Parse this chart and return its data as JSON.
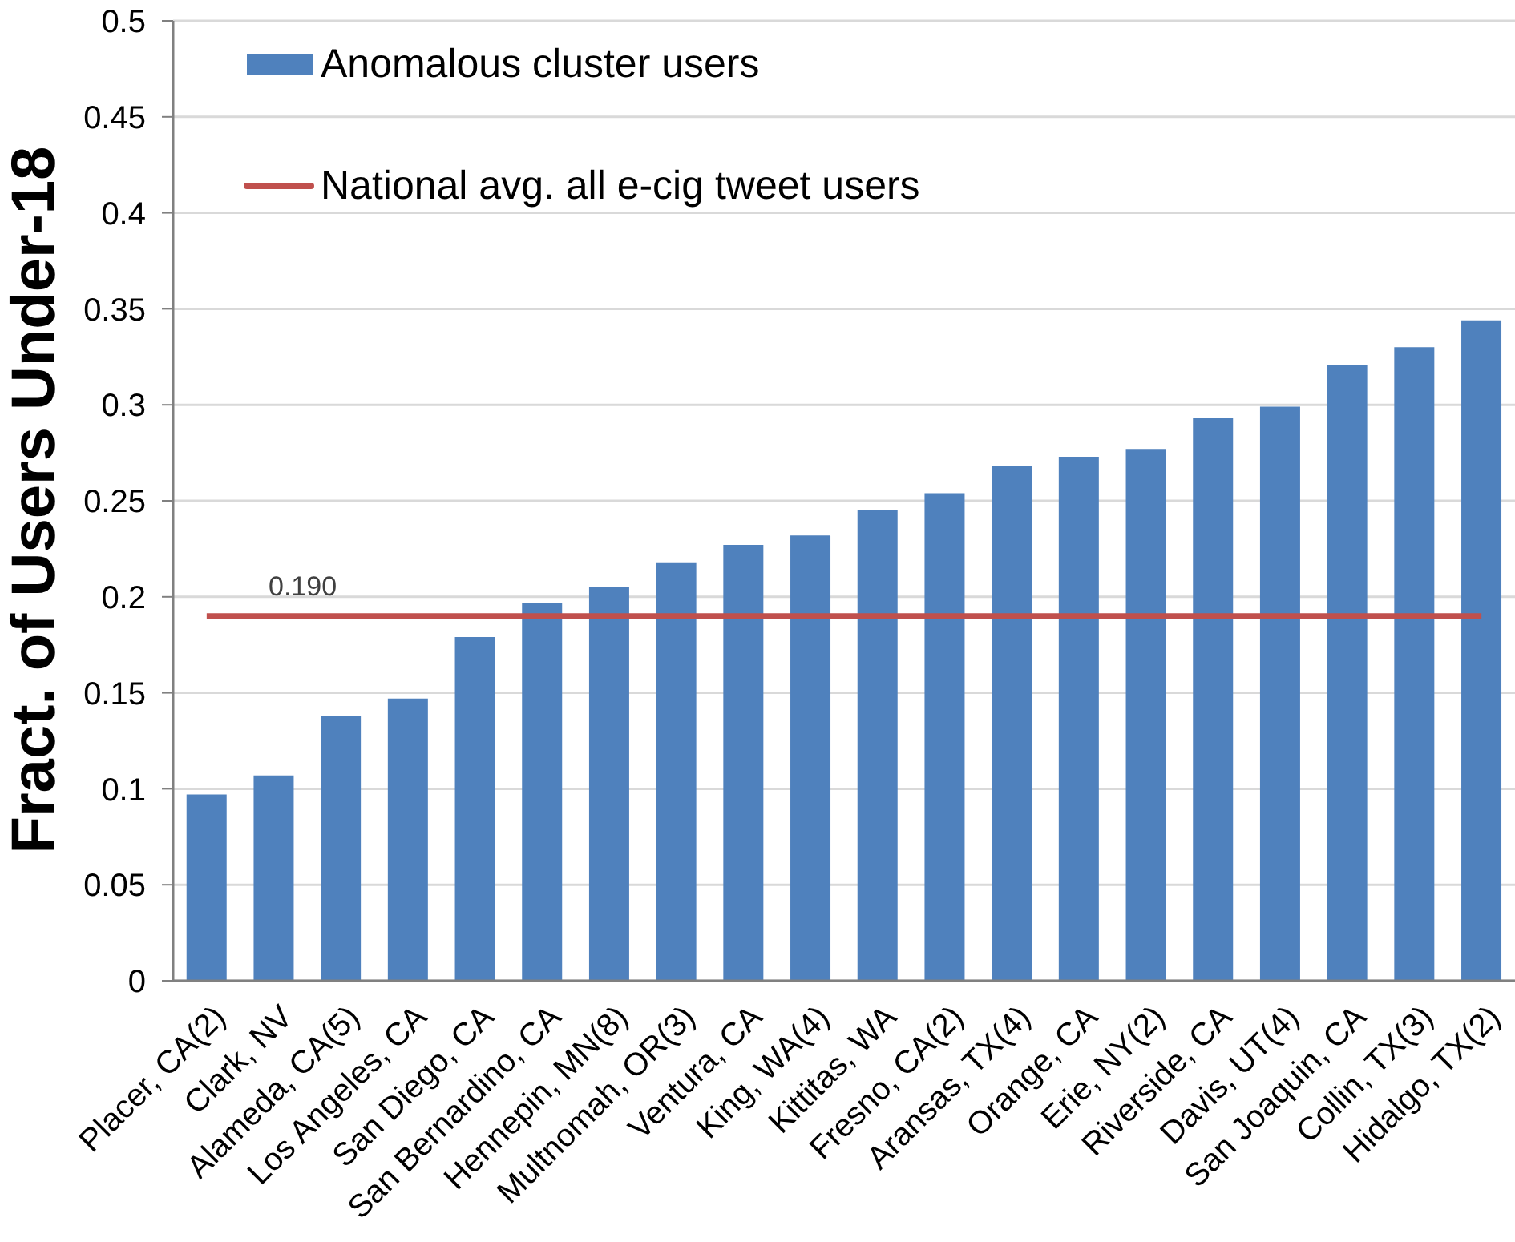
{
  "chart_data": {
    "type": "bar",
    "ylabel": "Fract. of Users Under-18",
    "categories": [
      "Placer, CA(2)",
      "Clark, NV",
      "Alameda, CA(5)",
      "Los Angeles, CA",
      "San Diego, CA",
      "San Bernardino, CA",
      "Hennepin, MN(8)",
      "Multnomah, OR(3)",
      "Ventura, CA",
      "King, WA(4)",
      "Kittitas, WA",
      "Fresno, CA(2)",
      "Aransas, TX(4)",
      "Orange, CA",
      "Erie, NY(2)",
      "Riverside, CA",
      "Davis, UT(4)",
      "San Joaquin, CA",
      "Collin, TX(3)",
      "Hidalgo, TX(2)"
    ],
    "series": [
      {
        "name": "Anomalous cluster users",
        "color": "#4f81bd",
        "values": [
          0.097,
          0.107,
          0.138,
          0.147,
          0.179,
          0.197,
          0.205,
          0.218,
          0.227,
          0.232,
          0.245,
          0.254,
          0.268,
          0.273,
          0.277,
          0.293,
          0.299,
          0.321,
          0.33,
          0.344
        ]
      },
      {
        "name": "National avg. all e-cig tweet users",
        "type": "line",
        "color": "#c0504d",
        "values": [
          0.19,
          0.19,
          0.19,
          0.19,
          0.19,
          0.19,
          0.19,
          0.19,
          0.19,
          0.19,
          0.19,
          0.19,
          0.19,
          0.19,
          0.19,
          0.19,
          0.19,
          0.19,
          0.19,
          0.19
        ],
        "value_labels": [
          null,
          "0.190",
          null,
          null,
          null,
          null,
          null,
          null,
          null,
          null,
          null,
          null,
          null,
          null,
          null,
          null,
          null,
          null,
          null,
          null
        ]
      }
    ],
    "ylim": [
      0,
      0.5
    ],
    "yticks": [
      0,
      0.05,
      0.1,
      0.15,
      0.2,
      0.25,
      0.3,
      0.35,
      0.4,
      0.45,
      0.5
    ],
    "grid": "y",
    "legend": "top left",
    "marker": "none"
  }
}
